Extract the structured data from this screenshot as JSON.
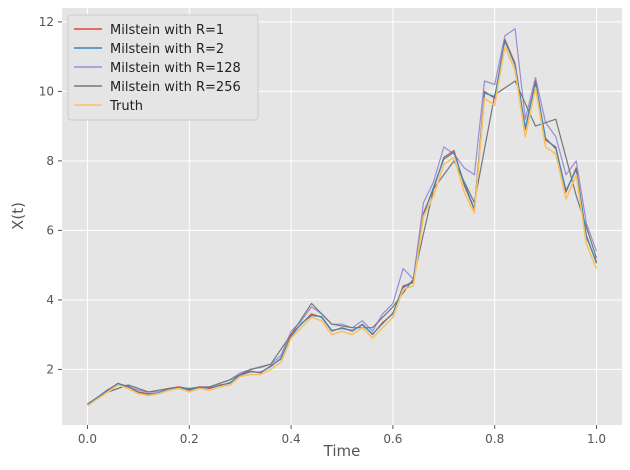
{
  "chart_data": {
    "type": "line",
    "title": "",
    "xlabel": "Time",
    "ylabel": "X(t)",
    "xlim": [
      -0.05,
      1.05
    ],
    "ylim": [
      0.4,
      12.4
    ],
    "xticks": [
      0.0,
      0.2,
      0.4,
      0.6,
      0.8,
      1.0
    ],
    "xtick_labels": [
      "0.0",
      "0.2",
      "0.4",
      "0.6",
      "0.8",
      "1.0"
    ],
    "yticks": [
      2,
      4,
      6,
      8,
      10,
      12
    ],
    "ytick_labels": [
      "2",
      "4",
      "6",
      "8",
      "10",
      "12"
    ],
    "grid": true,
    "legend_position": "top-left",
    "background": "#e5e5e5",
    "series": [
      {
        "name": "Milstein with R=1",
        "color": "#e24a33",
        "x": [
          0.0,
          0.02,
          0.04,
          0.06,
          0.08,
          0.1,
          0.12,
          0.14,
          0.16,
          0.18,
          0.2,
          0.22,
          0.24,
          0.26,
          0.28,
          0.3,
          0.32,
          0.34,
          0.36,
          0.38,
          0.4,
          0.42,
          0.44,
          0.46,
          0.48,
          0.5,
          0.52,
          0.54,
          0.56,
          0.58,
          0.6,
          0.62,
          0.64,
          0.66,
          0.68,
          0.7,
          0.72,
          0.74,
          0.76,
          0.78,
          0.8,
          0.82,
          0.84,
          0.86,
          0.88,
          0.9,
          0.92,
          0.94,
          0.96,
          0.98,
          1.0
        ],
        "y": [
          1.0,
          1.2,
          1.4,
          1.6,
          1.5,
          1.35,
          1.3,
          1.3,
          1.45,
          1.5,
          1.4,
          1.5,
          1.45,
          1.55,
          1.6,
          1.85,
          1.95,
          1.9,
          2.1,
          2.3,
          3.0,
          3.3,
          3.6,
          3.5,
          3.1,
          3.2,
          3.1,
          3.3,
          3.0,
          3.35,
          3.6,
          4.4,
          4.5,
          6.5,
          7.2,
          8.1,
          8.3,
          7.3,
          6.6,
          10.0,
          9.8,
          11.5,
          10.8,
          8.9,
          10.3,
          8.6,
          8.4,
          7.1,
          7.8,
          5.8,
          5.1
        ]
      },
      {
        "name": "Milstein with R=2",
        "color": "#348abd",
        "x": [
          0.0,
          0.02,
          0.04,
          0.06,
          0.08,
          0.1,
          0.12,
          0.14,
          0.16,
          0.18,
          0.2,
          0.22,
          0.24,
          0.26,
          0.28,
          0.3,
          0.32,
          0.34,
          0.36,
          0.38,
          0.4,
          0.42,
          0.44,
          0.46,
          0.48,
          0.5,
          0.52,
          0.54,
          0.56,
          0.58,
          0.6,
          0.62,
          0.64,
          0.66,
          0.68,
          0.7,
          0.72,
          0.74,
          0.76,
          0.78,
          0.8,
          0.82,
          0.84,
          0.86,
          0.88,
          0.9,
          0.92,
          0.94,
          0.96,
          0.98,
          1.0
        ],
        "y": [
          1.0,
          1.2,
          1.42,
          1.58,
          1.52,
          1.33,
          1.28,
          1.32,
          1.43,
          1.48,
          1.42,
          1.48,
          1.47,
          1.53,
          1.62,
          1.83,
          1.93,
          1.92,
          2.08,
          2.32,
          2.95,
          3.32,
          3.55,
          3.52,
          3.12,
          3.18,
          3.12,
          3.28,
          3.02,
          3.32,
          3.62,
          4.35,
          4.55,
          6.45,
          7.25,
          8.05,
          8.25,
          7.35,
          6.62,
          9.95,
          9.85,
          11.45,
          10.75,
          8.95,
          10.25,
          8.65,
          8.35,
          7.15,
          7.75,
          5.85,
          5.05
        ]
      },
      {
        "name": "Milstein with R=128",
        "color": "#988ed5",
        "x": [
          0.0,
          0.02,
          0.04,
          0.06,
          0.08,
          0.1,
          0.12,
          0.14,
          0.16,
          0.18,
          0.2,
          0.22,
          0.24,
          0.26,
          0.28,
          0.3,
          0.32,
          0.34,
          0.36,
          0.38,
          0.4,
          0.42,
          0.44,
          0.46,
          0.48,
          0.5,
          0.52,
          0.54,
          0.56,
          0.58,
          0.6,
          0.62,
          0.64,
          0.66,
          0.68,
          0.7,
          0.72,
          0.74,
          0.76,
          0.78,
          0.8,
          0.82,
          0.84,
          0.86,
          0.88,
          0.9,
          0.92,
          0.94,
          0.96,
          0.98,
          1.0
        ],
        "y": [
          1.0,
          1.15,
          1.35,
          1.55,
          1.5,
          1.4,
          1.35,
          1.35,
          1.45,
          1.5,
          1.45,
          1.5,
          1.5,
          1.6,
          1.7,
          1.9,
          2.0,
          2.05,
          2.15,
          2.4,
          3.1,
          3.4,
          3.8,
          3.6,
          3.3,
          3.3,
          3.2,
          3.4,
          3.1,
          3.6,
          3.9,
          4.9,
          4.6,
          6.8,
          7.4,
          8.4,
          8.2,
          7.8,
          7.6,
          10.3,
          10.2,
          11.6,
          11.8,
          9.2,
          10.4,
          9.1,
          8.7,
          7.6,
          8.0,
          6.2,
          5.4
        ]
      },
      {
        "name": "Milstein with R=256",
        "color": "#777777",
        "x": [
          0.0,
          0.04,
          0.08,
          0.12,
          0.16,
          0.2,
          0.24,
          0.28,
          0.32,
          0.36,
          0.4,
          0.44,
          0.48,
          0.52,
          0.56,
          0.6,
          0.64,
          0.68,
          0.72,
          0.76,
          0.8,
          0.84,
          0.88,
          0.92,
          0.96,
          1.0
        ],
        "y": [
          1.0,
          1.35,
          1.55,
          1.35,
          1.45,
          1.45,
          1.5,
          1.7,
          2.0,
          2.15,
          3.0,
          3.9,
          3.3,
          3.2,
          3.2,
          3.8,
          4.6,
          7.2,
          8.0,
          6.8,
          9.9,
          10.3,
          9.0,
          9.2,
          7.0,
          5.2
        ]
      },
      {
        "name": "Truth",
        "color": "#fbc15e",
        "x": [
          0.0,
          0.02,
          0.04,
          0.06,
          0.08,
          0.1,
          0.12,
          0.14,
          0.16,
          0.18,
          0.2,
          0.22,
          0.24,
          0.26,
          0.28,
          0.3,
          0.32,
          0.34,
          0.36,
          0.38,
          0.4,
          0.42,
          0.44,
          0.46,
          0.48,
          0.5,
          0.52,
          0.54,
          0.56,
          0.58,
          0.6,
          0.62,
          0.64,
          0.66,
          0.68,
          0.7,
          0.72,
          0.74,
          0.76,
          0.78,
          0.8,
          0.82,
          0.84,
          0.86,
          0.88,
          0.9,
          0.92,
          0.94,
          0.96,
          0.98,
          1.0
        ],
        "y": [
          0.95,
          1.15,
          1.35,
          1.55,
          1.45,
          1.3,
          1.25,
          1.3,
          1.4,
          1.45,
          1.35,
          1.45,
          1.4,
          1.5,
          1.55,
          1.8,
          1.85,
          1.85,
          2.0,
          2.2,
          2.9,
          3.2,
          3.5,
          3.4,
          3.0,
          3.1,
          3.0,
          3.2,
          2.9,
          3.2,
          3.5,
          4.3,
          4.4,
          6.4,
          7.0,
          7.9,
          8.1,
          7.1,
          6.5,
          9.8,
          9.6,
          11.3,
          10.6,
          8.7,
          10.1,
          8.4,
          8.2,
          6.9,
          7.6,
          5.6,
          4.9
        ]
      }
    ]
  }
}
